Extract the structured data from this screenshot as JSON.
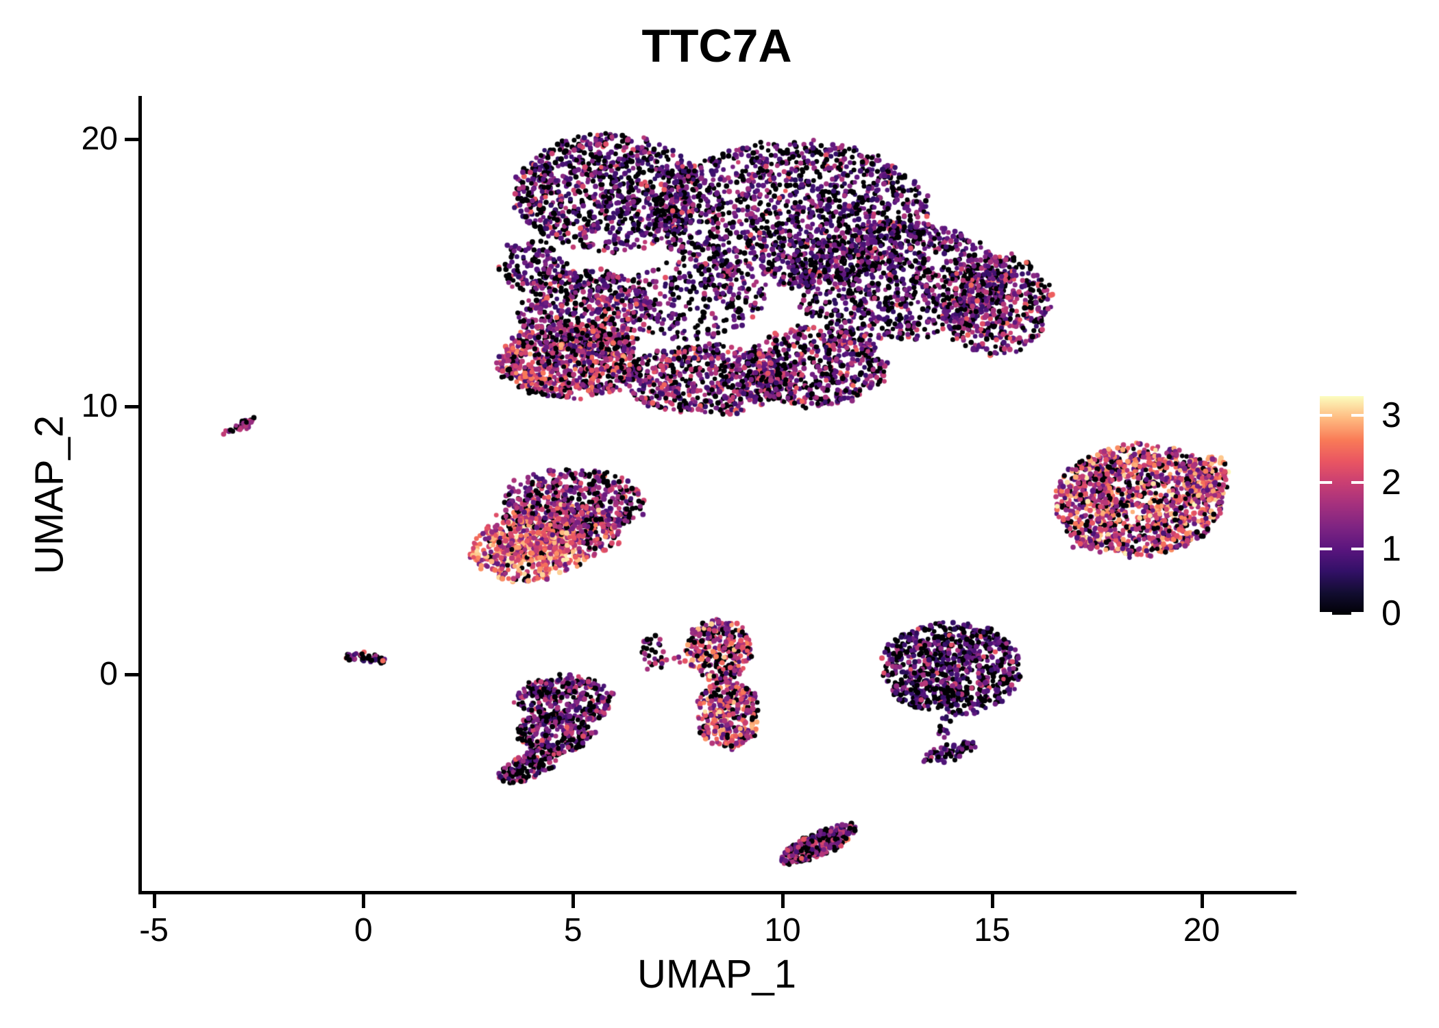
{
  "title": "TTC7A",
  "axes": {
    "x": {
      "label": "UMAP_1",
      "ticks": [
        -5,
        0,
        5,
        10,
        15,
        20
      ]
    },
    "y": {
      "label": "UMAP_2",
      "ticks": [
        0,
        10,
        20
      ]
    }
  },
  "colorbar": {
    "ticks": [
      0,
      1,
      2,
      3
    ],
    "vmax": 3.265,
    "colormap": "magma",
    "stops": [
      "#000004",
      "#120d31",
      "#331068",
      "#5a157e",
      "#7e2482",
      "#a3307e",
      "#c83e73",
      "#e95562",
      "#f97b57",
      "#febb81",
      "#fcfdbf"
    ]
  },
  "chart_data": {
    "type": "scatter",
    "title": "TTC7A",
    "xlabel": "UMAP_1",
    "ylabel": "UMAP_2",
    "xlim": [
      -5.4,
      22.2
    ],
    "ylim": [
      -8.2,
      21.6
    ],
    "grid": false,
    "legend_position": "right",
    "value_range": [
      0,
      3.265
    ],
    "point_radius_px": 3.6,
    "mixes": {
      "dark": [
        [
          0.38,
          0,
          0
        ],
        [
          0.4,
          0.55,
          1.25
        ],
        [
          0.17,
          1.25,
          1.85
        ],
        [
          0.05,
          1.85,
          2.35
        ]
      ],
      "darker": [
        [
          0.44,
          0,
          0
        ],
        [
          0.4,
          0.5,
          1.2
        ],
        [
          0.13,
          1.2,
          1.8
        ],
        [
          0.03,
          1.8,
          2.3
        ]
      ],
      "mixmid": [
        [
          0.32,
          0,
          0
        ],
        [
          0.33,
          0.6,
          1.3
        ],
        [
          0.23,
          1.3,
          2.0
        ],
        [
          0.12,
          1.9,
          2.5
        ]
      ],
      "pinkzone": [
        [
          0.25,
          0,
          0
        ],
        [
          0.23,
          0.7,
          1.4
        ],
        [
          0.29,
          1.4,
          2.1
        ],
        [
          0.19,
          2.0,
          2.6
        ],
        [
          0.04,
          2.5,
          2.9
        ]
      ],
      "hot": [
        [
          0.08,
          0,
          0
        ],
        [
          0.14,
          1.0,
          1.8
        ],
        [
          0.34,
          1.8,
          2.5
        ],
        [
          0.3,
          2.4,
          3.0
        ],
        [
          0.14,
          2.9,
          3.25
        ]
      ],
      "warm": [
        [
          0.17,
          0,
          0
        ],
        [
          0.22,
          0.9,
          1.7
        ],
        [
          0.33,
          1.6,
          2.3
        ],
        [
          0.22,
          2.2,
          2.8
        ],
        [
          0.06,
          2.7,
          3.1
        ]
      ],
      "dpurple": [
        [
          0.3,
          0,
          0
        ],
        [
          0.36,
          0.7,
          1.5
        ],
        [
          0.24,
          1.5,
          2.1
        ],
        [
          0.1,
          2.0,
          2.6
        ]
      ],
      "pinkrich": [
        [
          0.2,
          0,
          0
        ],
        [
          0.24,
          0.8,
          1.5
        ],
        [
          0.32,
          1.5,
          2.3
        ],
        [
          0.18,
          2.2,
          2.9
        ],
        [
          0.06,
          2.8,
          3.2
        ]
      ],
      "gmix": [
        [
          0.4,
          0,
          0
        ],
        [
          0.34,
          0.6,
          1.3
        ],
        [
          0.2,
          1.3,
          2.0
        ],
        [
          0.06,
          1.9,
          2.4
        ]
      ],
      "imix": [
        [
          0.36,
          0,
          0
        ],
        [
          0.38,
          0.7,
          1.4
        ],
        [
          0.2,
          1.4,
          2.1
        ],
        [
          0.06,
          2.0,
          2.6
        ]
      ],
      "bmix": [
        [
          0.3,
          0,
          0
        ],
        [
          0.45,
          0.7,
          1.4
        ],
        [
          0.25,
          1.4,
          2.0
        ]
      ],
      "cmix": [
        [
          0.46,
          0,
          0
        ],
        [
          0.34,
          0.6,
          1.2
        ],
        [
          0.16,
          1.2,
          1.9
        ],
        [
          0.04,
          2.3,
          2.6
        ]
      ],
      "emix": [
        [
          0.38,
          0,
          0
        ],
        [
          0.3,
          0.8,
          1.5
        ],
        [
          0.32,
          1.5,
          2.3
        ]
      ],
      "jmix": [
        [
          0.2,
          0,
          0
        ],
        [
          0.28,
          0.8,
          1.6
        ],
        [
          0.28,
          1.6,
          2.3
        ],
        [
          0.18,
          2.2,
          2.9
        ],
        [
          0.06,
          2.8,
          3.25
        ]
      ],
      "jhot": [
        [
          0.1,
          0,
          0
        ],
        [
          0.2,
          1.0,
          1.8
        ],
        [
          0.3,
          1.8,
          2.5
        ],
        [
          0.28,
          2.4,
          3.0
        ],
        [
          0.12,
          2.9,
          3.25
        ]
      ]
    },
    "clusters": [
      {
        "name": "big-top-left-lobe",
        "cx": 5.8,
        "cy": 18.0,
        "rx": 2.2,
        "ry": 2.2,
        "angle": 0,
        "n": 950,
        "mix": "dark"
      },
      {
        "name": "big-top-mid",
        "cx": 10.2,
        "cy": 17.2,
        "rx": 3.3,
        "ry": 2.7,
        "angle": 0,
        "n": 1500,
        "mix": "dark"
      },
      {
        "name": "big-right-mass",
        "cx": 12.7,
        "cy": 14.7,
        "rx": 2.6,
        "ry": 2.2,
        "angle": 0,
        "n": 950,
        "mix": "dark"
      },
      {
        "name": "big-right-lobe",
        "cx": 15.1,
        "cy": 13.8,
        "rx": 1.3,
        "ry": 1.9,
        "angle": 0,
        "n": 500,
        "mix": "mixmid"
      },
      {
        "name": "big-left-point",
        "cx": 4.0,
        "cy": 15.2,
        "rx": 0.8,
        "ry": 1.0,
        "angle": 0,
        "n": 130,
        "mix": "dark"
      },
      {
        "name": "big-mid-left",
        "cx": 5.3,
        "cy": 13.5,
        "rx": 1.6,
        "ry": 1.6,
        "angle": 0,
        "n": 520,
        "mix": "mixmid"
      },
      {
        "name": "big-pink-zone",
        "cx": 4.9,
        "cy": 11.7,
        "rx": 1.7,
        "ry": 1.4,
        "angle": 0,
        "n": 750,
        "mix": "pinkzone"
      },
      {
        "name": "big-bottom-mid",
        "cx": 8.2,
        "cy": 11.0,
        "rx": 2.0,
        "ry": 1.3,
        "angle": 0,
        "n": 620,
        "mix": "mixmid"
      },
      {
        "name": "big-bottom-right",
        "cx": 10.8,
        "cy": 11.5,
        "rx": 1.7,
        "ry": 1.5,
        "angle": 0,
        "n": 550,
        "mix": "mixmid"
      },
      {
        "name": "big-center-fill",
        "cx": 7.8,
        "cy": 14.0,
        "rx": 1.8,
        "ry": 1.5,
        "angle": 0,
        "n": 280,
        "mix": "dark"
      },
      {
        "name": "streak-far-left",
        "cx": -2.95,
        "cy": 9.25,
        "rx": 0.5,
        "ry": 0.13,
        "angle": 42,
        "n": 40,
        "mix": "bmix"
      },
      {
        "name": "small-left-zero",
        "cx": 0.0,
        "cy": 0.62,
        "rx": 0.52,
        "ry": 0.17,
        "angle": -12,
        "n": 48,
        "mix": "cmix"
      },
      {
        "name": "midleft-top-purple",
        "cx": 5.0,
        "cy": 6.4,
        "rx": 1.7,
        "ry": 1.25,
        "angle": 0,
        "n": 470,
        "mix": "dpurple"
      },
      {
        "name": "midleft-mid-warm",
        "cx": 4.6,
        "cy": 5.3,
        "rx": 1.6,
        "ry": 1.1,
        "angle": 0,
        "n": 380,
        "mix": "warm"
      },
      {
        "name": "midleft-hot-corner",
        "cx": 3.9,
        "cy": 4.6,
        "rx": 1.35,
        "ry": 1.15,
        "angle": 0,
        "n": 430,
        "mix": "hot"
      },
      {
        "name": "crescent",
        "cx": 6.9,
        "cy": 0.8,
        "rx": 0.3,
        "ry": 0.68,
        "angle": 0,
        "n": 34,
        "mix": "emix"
      },
      {
        "name": "crescent-dots",
        "cx": 7.45,
        "cy": 0.55,
        "rx": 0.25,
        "ry": 0.22,
        "angle": 0,
        "n": 6,
        "mix": "emix"
      },
      {
        "name": "vertical-top",
        "cx": 8.5,
        "cy": 0.9,
        "rx": 0.78,
        "ry": 1.15,
        "angle": 0,
        "n": 300,
        "mix": "pinkrich"
      },
      {
        "name": "vertical-bottom",
        "cx": 8.7,
        "cy": -1.5,
        "rx": 0.72,
        "ry": 1.3,
        "angle": 0,
        "n": 330,
        "mix": "pinkrich"
      },
      {
        "name": "bottomleft-main",
        "cx": 4.8,
        "cy": -1.0,
        "rx": 1.15,
        "ry": 0.95,
        "angle": 0,
        "n": 330,
        "mix": "gmix"
      },
      {
        "name": "bottomleft-mid",
        "cx": 4.55,
        "cy": -2.2,
        "rx": 0.95,
        "ry": 0.75,
        "angle": 0,
        "n": 210,
        "mix": "gmix"
      },
      {
        "name": "bottomleft-arm",
        "cx": 4.0,
        "cy": -3.4,
        "rx": 0.95,
        "ry": 0.42,
        "angle": 44,
        "n": 170,
        "mix": "gmix"
      },
      {
        "name": "rightmid-main",
        "cx": 14.0,
        "cy": 0.2,
        "rx": 1.65,
        "ry": 1.75,
        "angle": 0,
        "n": 850,
        "mix": "darker"
      },
      {
        "name": "rightmid-tail",
        "cx": 13.9,
        "cy": -2.0,
        "rx": 0.18,
        "ry": 0.45,
        "angle": 0,
        "n": 14,
        "mix": "darker"
      },
      {
        "name": "rightmid-hook",
        "cx": 14.0,
        "cy": -2.9,
        "rx": 0.7,
        "ry": 0.28,
        "angle": 25,
        "n": 60,
        "mix": "darker"
      },
      {
        "name": "bottom-band",
        "cx": 10.85,
        "cy": -6.35,
        "rx": 1.1,
        "ry": 0.38,
        "angle": 38,
        "n": 300,
        "mix": "imix"
      },
      {
        "name": "right-round",
        "cx": 18.5,
        "cy": 6.5,
        "rx": 2.0,
        "ry": 2.1,
        "angle": -18,
        "n": 1250,
        "mix": "jmix"
      },
      {
        "name": "right-round-edge",
        "cx": 20.1,
        "cy": 7.2,
        "rx": 0.55,
        "ry": 0.95,
        "angle": -15,
        "n": 130,
        "mix": "jhot"
      },
      {
        "name": "right-round-tail",
        "cx": 17.2,
        "cy": 4.9,
        "rx": 0.35,
        "ry": 0.3,
        "angle": 0,
        "n": 25,
        "mix": "jmix"
      }
    ]
  }
}
